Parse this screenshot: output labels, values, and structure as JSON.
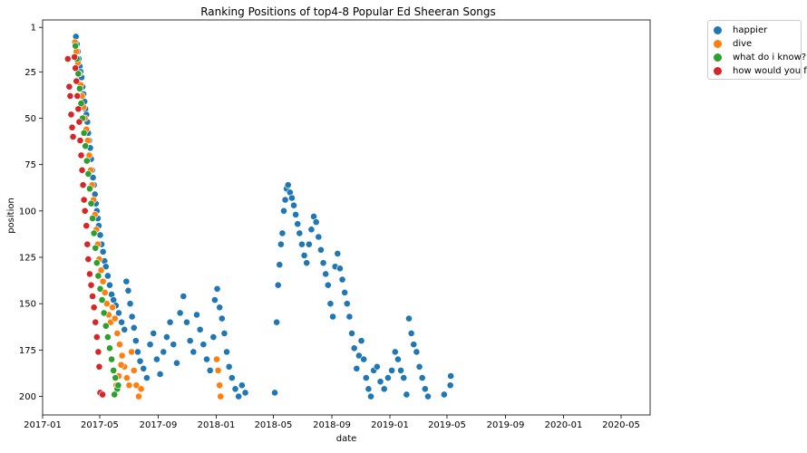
{
  "chart_data": {
    "type": "scatter",
    "title": "Ranking Positions of top4-8 Popular Ed Sheeran Songs",
    "xlabel": "date",
    "ylabel": "position",
    "x_axis": {
      "type": "date",
      "range": [
        "2017-01-01",
        "2020-07-01"
      ],
      "ticks": [
        {
          "date": "2017-01-01",
          "label": "2017-01"
        },
        {
          "date": "2017-05-01",
          "label": "2017-05"
        },
        {
          "date": "2017-09-01",
          "label": "2017-09"
        },
        {
          "date": "2018-01-01",
          "label": "2018-01"
        },
        {
          "date": "2018-05-01",
          "label": "2018-05"
        },
        {
          "date": "2018-09-01",
          "label": "2018-09"
        },
        {
          "date": "2019-01-01",
          "label": "2019-01"
        },
        {
          "date": "2019-05-01",
          "label": "2019-05"
        },
        {
          "date": "2019-09-01",
          "label": "2019-09"
        },
        {
          "date": "2020-01-01",
          "label": "2020-01"
        },
        {
          "date": "2020-05-01",
          "label": "2020-05"
        }
      ]
    },
    "y_axis": {
      "inverted": true,
      "range": [
        -3,
        210
      ],
      "ticks": [
        1,
        25,
        50,
        75,
        100,
        125,
        150,
        175,
        200
      ]
    },
    "grid": false,
    "legend_position": "outside-top-right",
    "series": [
      {
        "name": "happier",
        "color": "#1f77b4",
        "points": [
          [
            "2017-03-12",
            6
          ],
          [
            "2017-03-14",
            10
          ],
          [
            "2017-03-16",
            14
          ],
          [
            "2017-03-18",
            18
          ],
          [
            "2017-03-20",
            22
          ],
          [
            "2017-03-22",
            25
          ],
          [
            "2017-03-24",
            28
          ],
          [
            "2017-03-26",
            33
          ],
          [
            "2017-03-28",
            37
          ],
          [
            "2017-03-30",
            41
          ],
          [
            "2017-04-01",
            45
          ],
          [
            "2017-04-03",
            48
          ],
          [
            "2017-04-05",
            52
          ],
          [
            "2017-04-07",
            58
          ],
          [
            "2017-04-09",
            62
          ],
          [
            "2017-04-11",
            66
          ],
          [
            "2017-04-13",
            72
          ],
          [
            "2017-04-15",
            78
          ],
          [
            "2017-04-17",
            82
          ],
          [
            "2017-04-19",
            86
          ],
          [
            "2017-04-21",
            91
          ],
          [
            "2017-04-23",
            96
          ],
          [
            "2017-04-25",
            100
          ],
          [
            "2017-04-27",
            104
          ],
          [
            "2017-04-29",
            108
          ],
          [
            "2017-05-02",
            113
          ],
          [
            "2017-05-05",
            118
          ],
          [
            "2017-05-08",
            122
          ],
          [
            "2017-05-11",
            127
          ],
          [
            "2017-05-14",
            130
          ],
          [
            "2017-05-18",
            135
          ],
          [
            "2017-05-22",
            140
          ],
          [
            "2017-05-26",
            145
          ],
          [
            "2017-05-30",
            148
          ],
          [
            "2017-06-04",
            151
          ],
          [
            "2017-06-10",
            155
          ],
          [
            "2017-06-16",
            160
          ],
          [
            "2017-06-22",
            164
          ],
          [
            "2017-06-26",
            138
          ],
          [
            "2017-06-30",
            143
          ],
          [
            "2017-07-04",
            150
          ],
          [
            "2017-07-08",
            157
          ],
          [
            "2017-07-12",
            163
          ],
          [
            "2017-07-16",
            170
          ],
          [
            "2017-07-20",
            176
          ],
          [
            "2017-07-25",
            181
          ],
          [
            "2017-08-01",
            185
          ],
          [
            "2017-08-08",
            190
          ],
          [
            "2017-08-15",
            172
          ],
          [
            "2017-08-22",
            166
          ],
          [
            "2017-08-29",
            180
          ],
          [
            "2017-09-05",
            188
          ],
          [
            "2017-09-12",
            176
          ],
          [
            "2017-09-19",
            168
          ],
          [
            "2017-09-26",
            160
          ],
          [
            "2017-10-03",
            172
          ],
          [
            "2017-10-10",
            182
          ],
          [
            "2017-10-17",
            155
          ],
          [
            "2017-10-24",
            146
          ],
          [
            "2017-10-31",
            160
          ],
          [
            "2017-11-07",
            170
          ],
          [
            "2017-11-14",
            176
          ],
          [
            "2017-11-21",
            156
          ],
          [
            "2017-11-28",
            164
          ],
          [
            "2017-12-05",
            172
          ],
          [
            "2017-12-12",
            180
          ],
          [
            "2017-12-19",
            186
          ],
          [
            "2017-12-26",
            168
          ],
          [
            "2017-12-29",
            148
          ],
          [
            "2018-01-03",
            142
          ],
          [
            "2018-01-08",
            152
          ],
          [
            "2018-01-13",
            158
          ],
          [
            "2018-01-18",
            166
          ],
          [
            "2018-01-23",
            176
          ],
          [
            "2018-01-28",
            184
          ],
          [
            "2018-02-03",
            190
          ],
          [
            "2018-02-10",
            196
          ],
          [
            "2018-02-17",
            200
          ],
          [
            "2018-02-24",
            194
          ],
          [
            "2018-03-03",
            198
          ],
          [
            "2018-05-04",
            198
          ],
          [
            "2018-05-08",
            160
          ],
          [
            "2018-05-11",
            140
          ],
          [
            "2018-05-14",
            129
          ],
          [
            "2018-05-17",
            118
          ],
          [
            "2018-05-20",
            112
          ],
          [
            "2018-05-23",
            100
          ],
          [
            "2018-05-26",
            94
          ],
          [
            "2018-05-29",
            88
          ],
          [
            "2018-06-01",
            86
          ],
          [
            "2018-06-05",
            90
          ],
          [
            "2018-06-09",
            93
          ],
          [
            "2018-06-13",
            97
          ],
          [
            "2018-06-17",
            102
          ],
          [
            "2018-06-21",
            107
          ],
          [
            "2018-06-25",
            112
          ],
          [
            "2018-06-30",
            118
          ],
          [
            "2018-07-05",
            124
          ],
          [
            "2018-07-10",
            128
          ],
          [
            "2018-07-15",
            118
          ],
          [
            "2018-07-20",
            110
          ],
          [
            "2018-07-25",
            103
          ],
          [
            "2018-07-30",
            106
          ],
          [
            "2018-08-04",
            114
          ],
          [
            "2018-08-09",
            121
          ],
          [
            "2018-08-14",
            128
          ],
          [
            "2018-08-19",
            134
          ],
          [
            "2018-08-24",
            140
          ],
          [
            "2018-08-29",
            150
          ],
          [
            "2018-09-03",
            157
          ],
          [
            "2018-09-08",
            130
          ],
          [
            "2018-09-13",
            123
          ],
          [
            "2018-09-18",
            131
          ],
          [
            "2018-09-23",
            137
          ],
          [
            "2018-09-28",
            144
          ],
          [
            "2018-10-03",
            150
          ],
          [
            "2018-10-08",
            157
          ],
          [
            "2018-10-13",
            166
          ],
          [
            "2018-10-18",
            174
          ],
          [
            "2018-10-23",
            185
          ],
          [
            "2018-10-28",
            178
          ],
          [
            "2018-11-02",
            170
          ],
          [
            "2018-11-07",
            180
          ],
          [
            "2018-11-12",
            190
          ],
          [
            "2018-11-17",
            196
          ],
          [
            "2018-11-22",
            200
          ],
          [
            "2018-11-28",
            186
          ],
          [
            "2018-12-05",
            184
          ],
          [
            "2018-12-12",
            192
          ],
          [
            "2018-12-20",
            196
          ],
          [
            "2018-12-28",
            190
          ],
          [
            "2019-01-05",
            186
          ],
          [
            "2019-01-12",
            176
          ],
          [
            "2019-01-18",
            180
          ],
          [
            "2019-01-24",
            186
          ],
          [
            "2019-01-30",
            190
          ],
          [
            "2019-02-05",
            199
          ],
          [
            "2019-02-10",
            158
          ],
          [
            "2019-02-15",
            166
          ],
          [
            "2019-02-20",
            172
          ],
          [
            "2019-02-26",
            176
          ],
          [
            "2019-03-04",
            184
          ],
          [
            "2019-03-10",
            190
          ],
          [
            "2019-03-16",
            196
          ],
          [
            "2019-03-22",
            200
          ],
          [
            "2019-04-25",
            199
          ],
          [
            "2019-05-08",
            194
          ],
          [
            "2019-05-09",
            189
          ]
        ]
      },
      {
        "name": "dive",
        "color": "#ff7f0e",
        "points": [
          [
            "2017-03-10",
            9
          ],
          [
            "2017-03-13",
            14
          ],
          [
            "2017-03-16",
            20
          ],
          [
            "2017-03-19",
            26
          ],
          [
            "2017-03-22",
            32
          ],
          [
            "2017-03-25",
            38
          ],
          [
            "2017-03-28",
            44
          ],
          [
            "2017-03-31",
            50
          ],
          [
            "2017-04-03",
            56
          ],
          [
            "2017-04-06",
            62
          ],
          [
            "2017-04-09",
            70
          ],
          [
            "2017-04-12",
            78
          ],
          [
            "2017-04-15",
            86
          ],
          [
            "2017-04-18",
            94
          ],
          [
            "2017-04-21",
            102
          ],
          [
            "2017-04-24",
            110
          ],
          [
            "2017-04-27",
            118
          ],
          [
            "2017-04-30",
            126
          ],
          [
            "2017-05-04",
            132
          ],
          [
            "2017-05-08",
            138
          ],
          [
            "2017-05-12",
            144
          ],
          [
            "2017-05-16",
            150
          ],
          [
            "2017-05-20",
            156
          ],
          [
            "2017-05-24",
            160
          ],
          [
            "2017-05-28",
            152
          ],
          [
            "2017-06-02",
            158
          ],
          [
            "2017-06-07",
            166
          ],
          [
            "2017-06-12",
            172
          ],
          [
            "2017-06-17",
            178
          ],
          [
            "2017-06-22",
            184
          ],
          [
            "2017-06-27",
            190
          ],
          [
            "2017-07-02",
            194
          ],
          [
            "2017-07-07",
            176
          ],
          [
            "2017-07-12",
            186
          ],
          [
            "2017-07-17",
            194
          ],
          [
            "2017-07-22",
            200
          ],
          [
            "2017-07-27",
            196
          ],
          [
            "2017-06-05",
            194
          ],
          [
            "2017-06-10",
            189
          ],
          [
            "2017-06-15",
            183
          ],
          [
            "2018-01-02",
            180
          ],
          [
            "2018-01-05",
            186
          ],
          [
            "2018-01-08",
            194
          ],
          [
            "2018-01-10",
            200
          ]
        ]
      },
      {
        "name": "what do i know?",
        "color": "#2ca02c",
        "points": [
          [
            "2017-03-11",
            11
          ],
          [
            "2017-03-14",
            18
          ],
          [
            "2017-03-17",
            26
          ],
          [
            "2017-03-20",
            34
          ],
          [
            "2017-03-23",
            42
          ],
          [
            "2017-03-26",
            50
          ],
          [
            "2017-03-29",
            58
          ],
          [
            "2017-04-01",
            65
          ],
          [
            "2017-04-04",
            73
          ],
          [
            "2017-04-07",
            80
          ],
          [
            "2017-04-10",
            88
          ],
          [
            "2017-04-13",
            96
          ],
          [
            "2017-04-16",
            104
          ],
          [
            "2017-04-19",
            112
          ],
          [
            "2017-04-22",
            120
          ],
          [
            "2017-04-25",
            128
          ],
          [
            "2017-04-28",
            135
          ],
          [
            "2017-05-02",
            142
          ],
          [
            "2017-05-06",
            148
          ],
          [
            "2017-05-10",
            155
          ],
          [
            "2017-05-14",
            162
          ],
          [
            "2017-05-18",
            168
          ],
          [
            "2017-05-22",
            174
          ],
          [
            "2017-05-26",
            180
          ],
          [
            "2017-05-30",
            186
          ],
          [
            "2017-06-03",
            190
          ],
          [
            "2017-06-07",
            196
          ],
          [
            "2017-06-01",
            199
          ],
          [
            "2017-06-09",
            194
          ]
        ]
      },
      {
        "name": "how would you feel",
        "color": "#d62728",
        "points": [
          [
            "2017-02-23",
            18
          ],
          [
            "2017-02-26",
            33
          ],
          [
            "2017-02-28",
            38
          ],
          [
            "2017-03-02",
            48
          ],
          [
            "2017-03-04",
            55
          ],
          [
            "2017-03-06",
            60
          ],
          [
            "2017-03-09",
            17
          ],
          [
            "2017-03-11",
            23
          ],
          [
            "2017-03-13",
            30
          ],
          [
            "2017-03-15",
            38
          ],
          [
            "2017-03-17",
            45
          ],
          [
            "2017-03-19",
            52
          ],
          [
            "2017-03-21",
            62
          ],
          [
            "2017-03-23",
            70
          ],
          [
            "2017-03-25",
            78
          ],
          [
            "2017-03-27",
            86
          ],
          [
            "2017-03-29",
            94
          ],
          [
            "2017-03-31",
            100
          ],
          [
            "2017-04-03",
            108
          ],
          [
            "2017-04-05",
            118
          ],
          [
            "2017-04-07",
            126
          ],
          [
            "2017-04-10",
            134
          ],
          [
            "2017-04-13",
            140
          ],
          [
            "2017-04-16",
            146
          ],
          [
            "2017-04-19",
            152
          ],
          [
            "2017-04-22",
            160
          ],
          [
            "2017-04-25",
            168
          ],
          [
            "2017-04-28",
            176
          ],
          [
            "2017-04-30",
            184
          ],
          [
            "2017-05-02",
            198
          ],
          [
            "2017-05-07",
            199
          ]
        ]
      }
    ]
  }
}
